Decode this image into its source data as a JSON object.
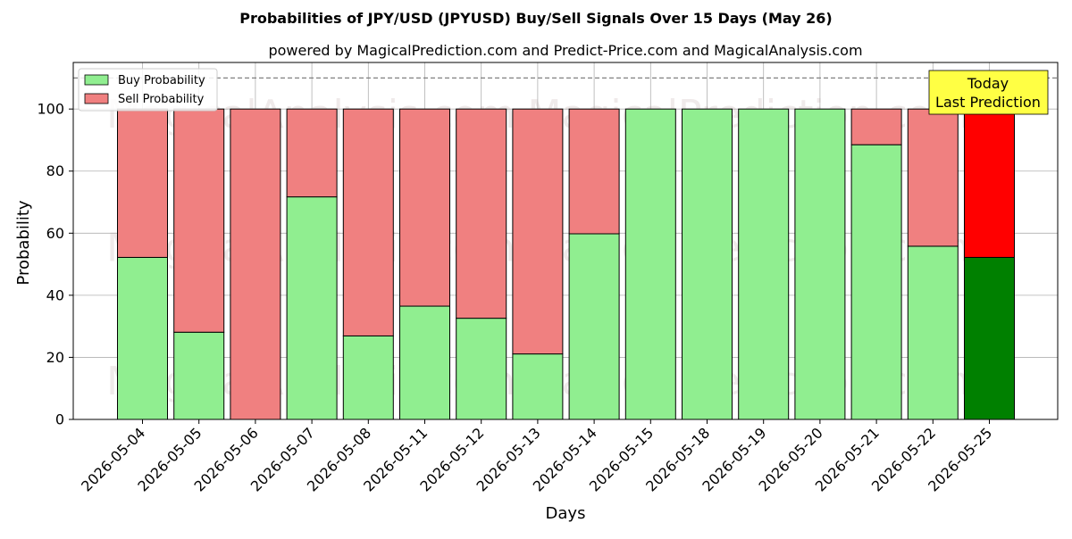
{
  "chart_data": {
    "type": "bar",
    "stacked": true,
    "title": "Probabilities of JPY/USD (JPYUSD) Buy/Sell Signals Over 15 Days (May 26)",
    "subtitle": "powered by MagicalPrediction.com and Predict-Price.com and MagicalAnalysis.com",
    "xlabel": "Days",
    "ylabel": "Probability",
    "ylim": [
      0,
      115
    ],
    "yticks": [
      0,
      20,
      40,
      60,
      80,
      100
    ],
    "grid": true,
    "legend_position": "top-left",
    "reference_line": {
      "value": 110,
      "style": "dashed"
    },
    "categories": [
      "2026-05-04",
      "2026-05-05",
      "2026-05-06",
      "2026-05-07",
      "2026-05-08",
      "2026-05-11",
      "2026-05-12",
      "2026-05-13",
      "2026-05-14",
      "2026-05-15",
      "2026-05-18",
      "2026-05-19",
      "2026-05-20",
      "2026-05-21",
      "2026-05-22",
      "2026-05-25"
    ],
    "series": [
      {
        "name": "Buy Probability",
        "color": "#90ee90",
        "highlight_color": "#008000",
        "values": [
          52.2,
          28.1,
          0,
          71.7,
          26.9,
          36.5,
          32.6,
          21.1,
          59.8,
          100,
          100,
          100,
          100,
          88.5,
          55.8,
          52.2
        ]
      },
      {
        "name": "Sell Probability",
        "color": "#f08080",
        "highlight_color": "#ff0000",
        "values": [
          47.8,
          71.9,
          100,
          28.3,
          73.1,
          63.5,
          67.4,
          78.9,
          40.2,
          0,
          0,
          0,
          0,
          11.5,
          44.2,
          47.8
        ]
      }
    ],
    "highlight_index": 15,
    "annotation": {
      "line1": "Today",
      "line2": "Last Prediction",
      "color": "#ffff44"
    },
    "watermarks": [
      "MagicalAnalysis.com",
      "MagicalPrediction.com"
    ]
  }
}
